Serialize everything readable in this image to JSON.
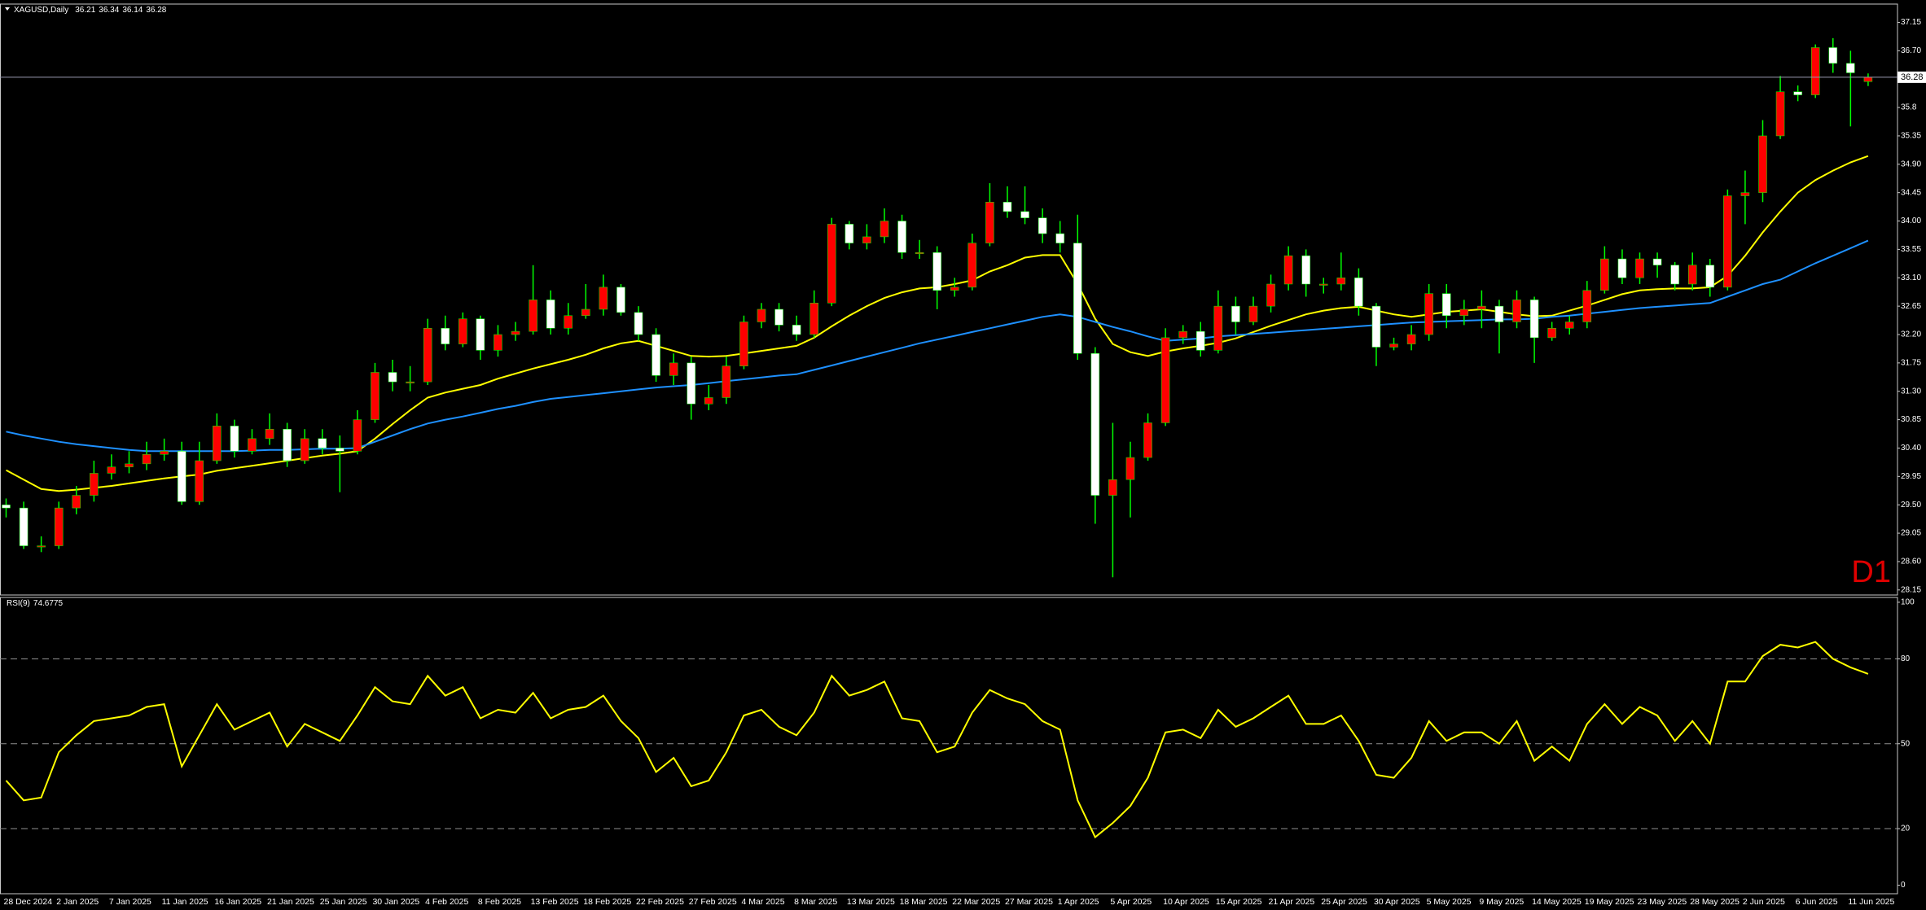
{
  "chart_data": [
    {
      "type": "candlestick",
      "symbol": "XAGUSD,Daily",
      "timeframe": "D1",
      "categories": [
        "28 Dec 2024",
        null,
        null,
        "2 Jan 2025",
        null,
        null,
        "7 Jan 2025",
        null,
        null,
        "11 Jan 2025",
        null,
        null,
        "16 Jan 2025",
        null,
        null,
        "21 Jan 2025",
        null,
        null,
        "25 Jan 2025",
        null,
        null,
        "30 Jan 2025",
        null,
        null,
        "4 Feb 2025",
        null,
        null,
        "8 Feb 2025",
        null,
        null,
        "13 Feb 2025",
        null,
        null,
        "18 Feb 2025",
        null,
        null,
        "22 Feb 2025",
        null,
        null,
        "27 Feb 2025",
        null,
        null,
        "4 Mar 2025",
        null,
        null,
        "8 Mar 2025",
        null,
        null,
        "13 Mar 2025",
        null,
        null,
        "18 Mar 2025",
        null,
        null,
        "22 Mar 2025",
        null,
        null,
        "27 Mar 2025",
        null,
        null,
        "1 Apr 2025",
        null,
        null,
        "5 Apr 2025",
        null,
        null,
        "10 Apr 2025",
        null,
        null,
        "15 Apr 2025",
        null,
        null,
        "21 Apr 2025",
        null,
        null,
        "25 Apr 2025",
        null,
        null,
        "30 Apr 2025",
        null,
        null,
        "5 May 2025",
        null,
        null,
        "9 May 2025",
        null,
        null,
        "14 May 2025",
        null,
        null,
        "19 May 2025",
        null,
        null,
        "23 May 2025",
        null,
        null,
        "28 May 2025",
        null,
        null,
        "2 Jun 2025",
        null,
        null,
        "6 Jun 2025",
        null,
        null,
        "11 Jun 2025",
        null
      ],
      "open": [
        29.5,
        29.45,
        28.85,
        28.85,
        29.45,
        29.65,
        30.0,
        30.1,
        30.15,
        30.3,
        30.35,
        29.55,
        30.2,
        30.75,
        30.35,
        30.55,
        30.7,
        30.2,
        30.55,
        30.4,
        30.35,
        30.85,
        31.6,
        31.45,
        31.45,
        32.3,
        32.05,
        32.45,
        31.95,
        32.2,
        32.25,
        32.75,
        32.3,
        32.5,
        32.6,
        32.95,
        32.55,
        32.2,
        31.55,
        31.75,
        31.1,
        31.2,
        31.7,
        32.4,
        32.6,
        32.35,
        32.2,
        32.7,
        33.95,
        33.65,
        33.75,
        34.0,
        33.5,
        33.5,
        32.9,
        32.95,
        33.65,
        34.3,
        34.15,
        34.05,
        33.8,
        33.65,
        31.9,
        29.65,
        29.9,
        30.25,
        30.8,
        32.15,
        32.25,
        31.95,
        32.65,
        32.4,
        32.65,
        33.0,
        33.45,
        33.0,
        33.0,
        33.1,
        32.65,
        32.0,
        32.05,
        32.2,
        32.85,
        32.5,
        32.6,
        32.65,
        32.4,
        32.75,
        32.15,
        32.3,
        32.4,
        32.9,
        33.4,
        33.1,
        33.4,
        33.3,
        33.0,
        33.3,
        32.95,
        34.4,
        34.45,
        35.35,
        36.05,
        36.0,
        36.75,
        36.5,
        36.21
      ],
      "high": [
        29.6,
        29.55,
        29.0,
        29.55,
        29.8,
        30.2,
        30.3,
        30.35,
        30.5,
        30.55,
        30.5,
        30.5,
        30.95,
        30.85,
        30.7,
        30.95,
        30.8,
        30.7,
        30.7,
        30.6,
        31.0,
        31.75,
        31.8,
        31.7,
        32.45,
        32.5,
        32.55,
        32.5,
        32.35,
        32.4,
        33.3,
        32.9,
        32.7,
        33.0,
        33.15,
        33.0,
        32.65,
        32.3,
        31.9,
        31.85,
        31.4,
        31.85,
        32.5,
        32.7,
        32.7,
        32.5,
        32.9,
        34.05,
        34.0,
        33.95,
        34.2,
        34.1,
        33.7,
        33.6,
        33.1,
        33.8,
        34.6,
        34.55,
        34.55,
        34.2,
        34.0,
        34.1,
        32.0,
        30.8,
        30.5,
        30.95,
        32.3,
        32.35,
        32.4,
        32.9,
        32.8,
        32.8,
        33.15,
        33.6,
        33.55,
        33.1,
        33.5,
        33.25,
        32.7,
        32.15,
        32.35,
        33.0,
        33.0,
        32.75,
        32.9,
        32.75,
        32.9,
        32.8,
        32.4,
        32.5,
        33.05,
        33.6,
        33.55,
        33.5,
        33.5,
        33.35,
        33.5,
        33.4,
        34.5,
        34.8,
        35.6,
        36.3,
        36.15,
        36.8,
        36.9,
        36.7,
        36.34
      ],
      "low": [
        29.3,
        28.8,
        28.75,
        28.8,
        29.35,
        29.55,
        29.9,
        30.0,
        30.05,
        30.2,
        29.5,
        29.5,
        30.15,
        30.25,
        30.3,
        30.45,
        30.1,
        30.15,
        30.3,
        29.7,
        30.3,
        30.8,
        31.3,
        31.3,
        31.4,
        31.95,
        32.0,
        31.8,
        31.85,
        32.1,
        32.2,
        32.2,
        32.2,
        32.45,
        32.5,
        32.5,
        32.1,
        31.45,
        31.4,
        30.85,
        31.0,
        31.1,
        31.65,
        32.3,
        32.25,
        32.1,
        32.15,
        32.65,
        33.55,
        33.55,
        33.65,
        33.4,
        33.4,
        32.6,
        32.8,
        32.9,
        33.6,
        34.05,
        33.95,
        33.65,
        33.5,
        31.8,
        29.2,
        28.35,
        29.3,
        30.2,
        30.75,
        32.05,
        31.85,
        31.9,
        32.2,
        32.35,
        32.55,
        32.9,
        32.8,
        32.85,
        32.9,
        32.5,
        31.7,
        31.95,
        31.95,
        32.1,
        32.3,
        32.35,
        32.3,
        31.9,
        32.3,
        31.75,
        32.1,
        32.2,
        32.3,
        32.85,
        33.0,
        33.0,
        33.1,
        32.9,
        32.9,
        32.8,
        32.9,
        33.95,
        34.3,
        35.3,
        35.9,
        35.95,
        36.35,
        35.5,
        36.14
      ],
      "close": [
        29.45,
        28.85,
        28.85,
        29.45,
        29.65,
        30.0,
        30.1,
        30.15,
        30.3,
        30.35,
        29.55,
        30.2,
        30.75,
        30.35,
        30.55,
        30.7,
        30.2,
        30.55,
        30.4,
        30.35,
        30.85,
        31.6,
        31.45,
        31.45,
        32.3,
        32.05,
        32.45,
        31.95,
        32.2,
        32.25,
        32.75,
        32.3,
        32.5,
        32.6,
        32.95,
        32.55,
        32.2,
        31.55,
        31.75,
        31.1,
        31.2,
        31.7,
        32.4,
        32.6,
        32.35,
        32.2,
        32.7,
        33.95,
        33.65,
        33.75,
        34.0,
        33.5,
        33.5,
        32.9,
        32.95,
        33.65,
        34.3,
        34.15,
        34.05,
        33.8,
        33.65,
        31.9,
        29.65,
        29.9,
        30.25,
        30.8,
        32.15,
        32.25,
        31.95,
        32.65,
        32.4,
        32.65,
        33.0,
        33.45,
        33.0,
        33.0,
        33.1,
        32.65,
        32.0,
        32.05,
        32.2,
        32.85,
        32.5,
        32.6,
        32.65,
        32.4,
        32.75,
        32.15,
        32.3,
        32.4,
        32.9,
        33.4,
        33.1,
        33.4,
        33.3,
        33.0,
        33.3,
        32.95,
        34.4,
        34.45,
        35.35,
        36.05,
        36.0,
        36.75,
        36.5,
        36.35,
        36.28
      ],
      "up_color": "#ff0000",
      "down_color": "#ffffff",
      "wick_color": "#00ff00",
      "series": [
        {
          "color": "#ffff00",
          "values": [
            30.05,
            29.9,
            29.75,
            29.72,
            29.74,
            29.77,
            29.8,
            29.84,
            29.88,
            29.92,
            29.95,
            29.98,
            30.04,
            30.08,
            30.12,
            30.16,
            30.2,
            30.24,
            30.28,
            30.31,
            30.35,
            30.55,
            30.78,
            31.0,
            31.2,
            31.28,
            31.34,
            31.4,
            31.5,
            31.58,
            31.66,
            31.73,
            31.8,
            31.88,
            31.98,
            32.06,
            32.1,
            32.02,
            31.94,
            31.86,
            31.85,
            31.86,
            31.9,
            31.94,
            31.98,
            32.02,
            32.15,
            32.33,
            32.5,
            32.65,
            32.78,
            32.87,
            32.93,
            32.95,
            33.0,
            33.06,
            33.2,
            33.3,
            33.42,
            33.46,
            33.46,
            33.0,
            32.45,
            32.05,
            31.92,
            31.86,
            31.93,
            31.98,
            32.02,
            32.07,
            32.14,
            32.24,
            32.34,
            32.43,
            32.52,
            32.58,
            32.62,
            32.64,
            32.58,
            32.52,
            32.48,
            32.52,
            32.56,
            32.58,
            32.6,
            32.56,
            32.52,
            32.49,
            32.5,
            32.58,
            32.66,
            32.75,
            32.84,
            32.9,
            32.92,
            32.93,
            32.93,
            32.95,
            33.13,
            33.45,
            33.82,
            34.15,
            34.45,
            34.65,
            34.8,
            34.93,
            35.03
          ]
        },
        {
          "color": "#1e90ff",
          "values": [
            30.66,
            30.6,
            30.55,
            30.5,
            30.46,
            30.43,
            30.4,
            30.37,
            30.35,
            30.35,
            30.35,
            30.35,
            30.35,
            30.35,
            30.36,
            30.37,
            30.37,
            30.38,
            30.39,
            30.39,
            30.4,
            30.5,
            30.6,
            30.7,
            30.79,
            30.85,
            30.9,
            30.96,
            31.02,
            31.07,
            31.13,
            31.18,
            31.21,
            31.24,
            31.27,
            31.3,
            31.33,
            31.36,
            31.38,
            31.4,
            31.43,
            31.46,
            31.49,
            31.52,
            31.55,
            31.57,
            31.64,
            31.71,
            31.78,
            31.85,
            31.92,
            31.99,
            32.06,
            32.12,
            32.18,
            32.24,
            32.3,
            32.36,
            32.42,
            32.48,
            32.52,
            32.48,
            32.4,
            32.32,
            32.25,
            32.17,
            32.1,
            32.12,
            32.14,
            32.17,
            32.19,
            32.21,
            32.23,
            32.25,
            32.27,
            32.29,
            32.31,
            32.33,
            32.35,
            32.37,
            32.39,
            32.4,
            32.41,
            32.42,
            32.43,
            32.44,
            32.44,
            32.45,
            32.48,
            32.5,
            32.53,
            32.56,
            32.59,
            32.62,
            32.64,
            32.66,
            32.68,
            32.7,
            32.8,
            32.9,
            33.0,
            33.07,
            33.2,
            33.33,
            33.45,
            33.57,
            33.69
          ]
        }
      ],
      "ylim": [
        28.07,
        37.44
      ],
      "yticks": [
        37.15,
        {
          "value": 36.7,
          "label": "36.70"
        },
        35.8,
        35.35,
        {
          "value": 34.9,
          "label": "34.90"
        },
        34.45,
        {
          "value": 34.0,
          "label": "34.00"
        },
        33.55,
        {
          "value": 33.1,
          "label": "33.10"
        },
        32.65,
        {
          "value": 32.2,
          "label": "32.20"
        },
        31.75,
        {
          "value": 31.3,
          "label": "31.30"
        },
        30.85,
        {
          "value": 30.4,
          "label": "30.40"
        },
        29.95,
        {
          "value": 29.5,
          "label": "29.50"
        },
        29.05,
        {
          "value": 28.6,
          "label": "28.60"
        },
        28.15
      ],
      "current_price_line": true,
      "grid": false
    },
    {
      "type": "line",
      "indicator": "RSI(9)",
      "color": "#ffff00",
      "values": [
        37,
        30,
        31,
        47,
        53,
        58,
        59,
        60,
        63,
        64,
        42,
        53,
        64,
        55,
        58,
        61,
        49,
        57,
        54,
        51,
        60,
        70,
        65,
        64,
        74,
        67,
        70,
        59,
        62,
        61,
        68,
        59,
        62,
        63,
        67,
        58,
        52,
        40,
        45,
        35,
        37,
        47,
        60,
        62,
        56,
        53,
        61,
        74,
        67,
        69,
        72,
        59,
        58,
        47,
        49,
        61,
        69,
        66,
        64,
        58,
        55,
        30,
        17,
        22,
        28,
        38,
        54,
        55,
        52,
        62,
        56,
        59,
        63,
        67,
        57,
        57,
        60,
        51,
        39,
        38,
        45,
        58,
        51,
        54,
        54,
        50,
        58,
        44,
        49,
        44,
        57,
        64,
        57,
        63,
        60,
        51,
        58,
        50,
        72,
        72,
        81,
        85,
        84,
        86,
        80,
        77,
        74.6775
      ],
      "ylim": [
        -3,
        101.7
      ],
      "yticks": [
        100,
        80,
        50,
        20,
        0
      ],
      "levels": [
        80,
        50,
        20
      ],
      "level_color": "#909090",
      "grid": false
    }
  ]
}
